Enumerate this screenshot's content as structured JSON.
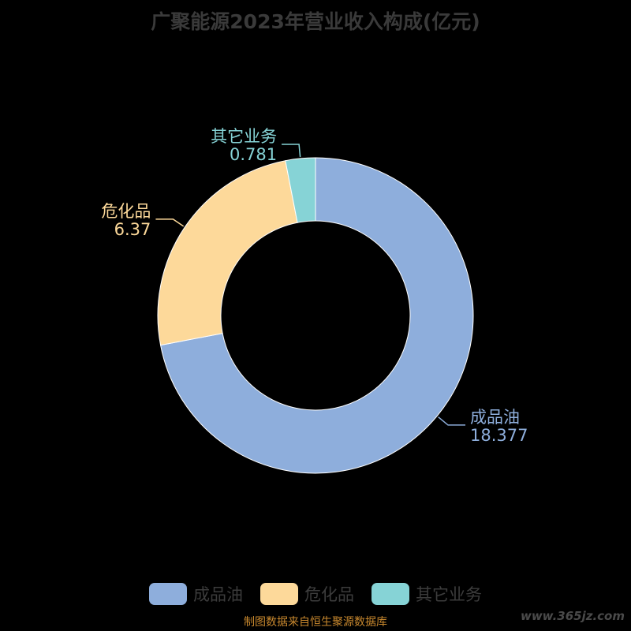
{
  "chart_data": {
    "type": "pie",
    "title": "广聚能源2023年营业收入构成(亿元)",
    "donut": true,
    "legend_position": "bottom",
    "series": [
      {
        "name": "成品油",
        "value": 18.377,
        "value_label": "18.377",
        "color": "#8eaedc"
      },
      {
        "name": "危化品",
        "value": 6.37,
        "value_label": "6.37",
        "color": "#fdd99a"
      },
      {
        "name": "其它业务",
        "value": 0.781,
        "value_label": "0.781",
        "color": "#86d3d6"
      }
    ]
  },
  "footer": {
    "source": "制图数据来自恒生聚源数据库",
    "watermark": "www.365jz.com"
  }
}
